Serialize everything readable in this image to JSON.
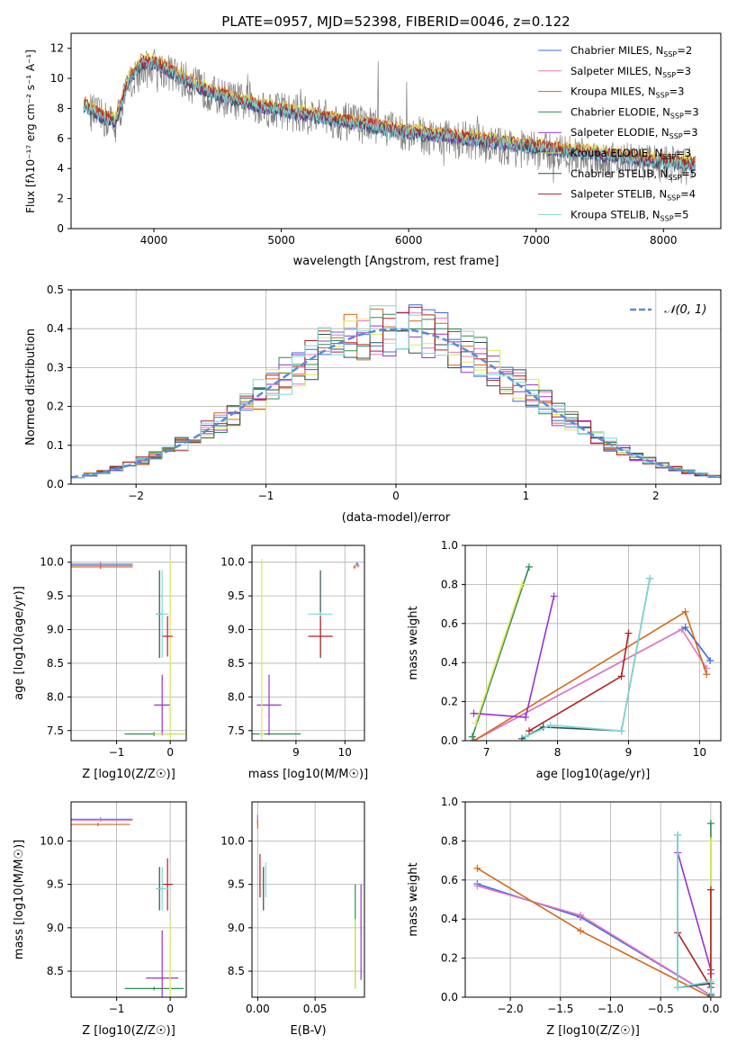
{
  "chart_data": [
    {
      "id": "spectrum",
      "type": "line",
      "title": "PLATE=0957, MJD=52398, FIBERID=0046, z=0.122",
      "xlabel": "wavelength [Angstrom, rest frame]",
      "ylabel": "Flux [fλ10⁻¹⁷ erg cm⁻² s⁻¹ A⁻¹]",
      "xlim": [
        3350,
        8450
      ],
      "ylim": [
        0,
        13
      ],
      "xticks": [
        4000,
        5000,
        6000,
        7000,
        8000
      ],
      "yticks": [
        0,
        2,
        4,
        6,
        8,
        10,
        12
      ],
      "legend": "top-right",
      "observed": {
        "x": [
          3500,
          3600,
          3700,
          3800,
          3900,
          4000,
          4100,
          4200,
          4300,
          4400,
          4500,
          4700,
          4900,
          5100,
          5300,
          5500,
          5700,
          5900,
          6100,
          6300,
          6500,
          6700,
          6900,
          7100,
          7300,
          7500,
          7700,
          7900,
          8100,
          8250
        ],
        "y": [
          7.8,
          7.3,
          7.0,
          9.5,
          10.5,
          10.8,
          10.5,
          10.0,
          9.6,
          9.2,
          8.8,
          8.4,
          8.0,
          7.7,
          7.4,
          7.1,
          6.8,
          6.5,
          6.2,
          6.0,
          5.8,
          5.5,
          5.3,
          5.1,
          4.9,
          4.7,
          4.5,
          4.4,
          4.3,
          4.1
        ]
      },
      "model": {
        "x": [
          3450,
          3500,
          3600,
          3700,
          3800,
          3900,
          4000,
          4100,
          4200,
          4300,
          4400,
          4500,
          4700,
          4900,
          5100,
          5300,
          5500,
          5700,
          5900,
          6100,
          6300,
          6500,
          6700,
          6900,
          7100,
          7300,
          7500,
          7700,
          7900,
          8100,
          8250
        ],
        "y": [
          8.2,
          7.9,
          7.4,
          7.1,
          9.8,
          11.0,
          11.0,
          10.6,
          10.1,
          9.6,
          9.2,
          8.9,
          8.4,
          8.0,
          7.7,
          7.4,
          7.1,
          6.8,
          6.5,
          6.3,
          6.1,
          5.9,
          5.7,
          5.5,
          5.3,
          5.1,
          4.9,
          4.7,
          4.5,
          4.4,
          4.2
        ]
      },
      "series": [
        {
          "name": "Chabrier MILES, N_SSP=2",
          "label_main": "Chabrier MILES, N",
          "label_sub": "SSP",
          "label_tail": "=2",
          "color": "#4169e1",
          "offset": 0.0
        },
        {
          "name": "Salpeter MILES, N_SSP=3",
          "label_main": "Salpeter MILES, N",
          "label_sub": "SSP",
          "label_tail": "=3",
          "color": "#e377c2",
          "offset": 0.1
        },
        {
          "name": "Kroupa MILES, N_SSP=3",
          "label_main": "Kroupa MILES, N",
          "label_sub": "SSP",
          "label_tail": "=3",
          "color": "#d2691e",
          "offset": 0.25
        },
        {
          "name": "Chabrier ELODIE, N_SSP=3",
          "label_main": "Chabrier ELODIE, N",
          "label_sub": "SSP",
          "label_tail": "=3",
          "color": "#2e8b57",
          "offset": 0.05
        },
        {
          "name": "Salpeter ELODIE, N_SSP=3",
          "label_main": "Salpeter ELODIE, N",
          "label_sub": "SSP",
          "label_tail": "=3",
          "color": "#9932cc",
          "offset": -0.05
        },
        {
          "name": "Kroupa ELODIE, N_SSP=3",
          "label_main": "Kroupa ELODIE, N",
          "label_sub": "SSP",
          "label_tail": "=3",
          "color": "#dde85a",
          "offset": 0.3
        },
        {
          "name": "Chabrier STELIB, N_SSP=5",
          "label_main": "Chabrier STELIB, N",
          "label_sub": "SSP",
          "label_tail": "=5",
          "color": "#2f4f4f",
          "offset": -0.1
        },
        {
          "name": "Salpeter STELIB, N_SSP=4",
          "label_main": "Salpeter STELIB, N",
          "label_sub": "SSP",
          "label_tail": "=4",
          "color": "#b22222",
          "offset": 0.15
        },
        {
          "name": "Kroupa STELIB, N_SSP=5",
          "label_main": "Kroupa STELIB, N",
          "label_sub": "SSP",
          "label_tail": "=5",
          "color": "#7fd8d8",
          "offset": 0.0
        }
      ]
    },
    {
      "id": "residuals",
      "type": "line",
      "xlabel": "(data-model)/error",
      "ylabel": "Normed distribution",
      "xlim": [
        -2.5,
        2.5
      ],
      "ylim": [
        0,
        0.5
      ],
      "xticks": [
        -2,
        -1,
        0,
        1,
        2
      ],
      "yticks": [
        0.0,
        0.1,
        0.2,
        0.3,
        0.4,
        0.5
      ],
      "grid": true,
      "bin_width": 0.1,
      "legend": "top-right",
      "reference_label": "𝒩(0, 1)",
      "reference_color": "#5b8bd6"
    },
    {
      "id": "age-vs-z",
      "type": "errorbar",
      "xlabel": "Z [log10(Z/Z☉)]",
      "ylabel": "age [log10(age/yr)]",
      "xlim": [
        -1.85,
        0.3
      ],
      "ylim": [
        7.35,
        10.25
      ],
      "xticks": [
        -1,
        0
      ],
      "yticks": [
        7.5,
        8.0,
        8.5,
        9.0,
        9.5,
        10.0
      ],
      "grid": true,
      "points": [
        {
          "x": -1.3,
          "y": 9.97,
          "xerr": 0.6,
          "yerr": 0.03,
          "series": 0
        },
        {
          "x": -1.3,
          "y": 9.95,
          "xerr": 0.6,
          "yerr": 0.03,
          "series": 1
        },
        {
          "x": -1.3,
          "y": 9.93,
          "xerr": 0.6,
          "yerr": 0.03,
          "series": 2
        },
        {
          "x": -0.3,
          "y": 7.45,
          "xerr": 0.55,
          "yerr": 0.03,
          "series": 3
        },
        {
          "x": -0.15,
          "y": 7.88,
          "xerr": 0.15,
          "yerr": 0.45,
          "series": 4
        },
        {
          "x": 0.0,
          "y": 7.45,
          "xerr": 0.3,
          "yerr": 2.6,
          "series": 5
        },
        {
          "x": -0.2,
          "y": 9.23,
          "xerr": 0.05,
          "yerr": 0.65,
          "series": 6
        },
        {
          "x": -0.05,
          "y": 8.9,
          "xerr": 0.1,
          "yerr": 0.3,
          "series": 7
        },
        {
          "x": -0.15,
          "y": 9.23,
          "xerr": 0.12,
          "yerr": 0.65,
          "series": 8
        }
      ]
    },
    {
      "id": "age-vs-mass",
      "type": "errorbar",
      "xlabel": "mass [log10(M/M☉)]",
      "ylabel": "",
      "xlim": [
        8.1,
        10.4
      ],
      "ylim": [
        7.35,
        10.25
      ],
      "xticks": [
        9,
        10
      ],
      "yticks": [
        7.5,
        8.0,
        8.5,
        9.0,
        9.5,
        10.0
      ],
      "grid": true,
      "points": [
        {
          "x": 10.25,
          "y": 9.97,
          "xerr": 0.03,
          "yerr": 0.03,
          "series": 0
        },
        {
          "x": 10.27,
          "y": 9.95,
          "xerr": 0.03,
          "yerr": 0.03,
          "series": 1
        },
        {
          "x": 10.2,
          "y": 9.93,
          "xerr": 0.03,
          "yerr": 0.03,
          "series": 2
        },
        {
          "x": 8.3,
          "y": 7.45,
          "xerr": 0.8,
          "yerr": 0.03,
          "series": 3
        },
        {
          "x": 8.45,
          "y": 7.88,
          "xerr": 0.25,
          "yerr": 0.45,
          "series": 4
        },
        {
          "x": 8.3,
          "y": 7.45,
          "xerr": 0.05,
          "yerr": 2.6,
          "series": 5
        },
        {
          "x": 9.5,
          "y": 9.23,
          "xerr": 0.03,
          "yerr": 0.65,
          "series": 6
        },
        {
          "x": 9.5,
          "y": 8.9,
          "xerr": 0.25,
          "yerr": 0.3,
          "series": 7
        },
        {
          "x": 9.5,
          "y": 9.23,
          "xerr": 0.25,
          "yerr": 0.03,
          "series": 8
        }
      ]
    },
    {
      "id": "mass-weight-vs-age",
      "type": "line",
      "xlabel": "age [log10(age/yr)]",
      "ylabel": "mass weight",
      "xlim": [
        6.7,
        10.3
      ],
      "ylim": [
        0,
        1
      ],
      "xticks": [
        7,
        8,
        9,
        10
      ],
      "yticks": [
        0.0,
        0.2,
        0.4,
        0.6,
        0.8,
        1.0
      ],
      "grid": true,
      "lines": [
        {
          "series": 0,
          "x": [
            6.82,
            9.8,
            10.15
          ],
          "y": [
            0.0,
            0.58,
            0.41
          ]
        },
        {
          "series": 1,
          "x": [
            6.82,
            9.75,
            10.1
          ],
          "y": [
            0.0,
            0.57,
            0.37
          ]
        },
        {
          "series": 2,
          "x": [
            6.82,
            9.8,
            10.1
          ],
          "y": [
            0.0,
            0.66,
            0.34
          ]
        },
        {
          "series": 3,
          "x": [
            6.8,
            7.6
          ],
          "y": [
            0.02,
            0.89
          ]
        },
        {
          "series": 4,
          "x": [
            6.82,
            7.55,
            7.95
          ],
          "y": [
            0.14,
            0.12,
            0.74
          ]
        },
        {
          "series": 5,
          "x": [
            6.85,
            7.5
          ],
          "y": [
            0.09,
            0.8
          ]
        },
        {
          "series": 6,
          "x": [
            7.5,
            7.8,
            8.9,
            9.3
          ],
          "y": [
            0.01,
            0.07,
            0.05,
            0.83
          ]
        },
        {
          "series": 7,
          "x": [
            7.6,
            8.9,
            9.0
          ],
          "y": [
            0.05,
            0.33,
            0.55
          ]
        },
        {
          "series": 8,
          "x": [
            7.55,
            7.9,
            8.9,
            9.3
          ],
          "y": [
            0.02,
            0.08,
            0.05,
            0.83
          ]
        }
      ]
    },
    {
      "id": "mass-vs-z",
      "type": "errorbar",
      "xlabel": "Z [log10(Z/Z☉)]",
      "ylabel": "mass [log10(M/M☉)]",
      "xlim": [
        -1.85,
        0.3
      ],
      "ylim": [
        8.2,
        10.45
      ],
      "xticks": [
        -1,
        0
      ],
      "yticks": [
        8.5,
        9.0,
        9.5,
        10.0
      ],
      "grid": true,
      "points": [
        {
          "x": -1.3,
          "y": 10.25,
          "xerr": 0.6,
          "yerr": 0.02,
          "series": 0
        },
        {
          "x": -1.3,
          "y": 10.24,
          "xerr": 0.6,
          "yerr": 0.02,
          "series": 1
        },
        {
          "x": -1.35,
          "y": 10.19,
          "xerr": 0.6,
          "yerr": 0.02,
          "series": 2
        },
        {
          "x": -0.3,
          "y": 8.3,
          "xerr": 0.55,
          "yerr": 0.02,
          "series": 3
        },
        {
          "x": -0.15,
          "y": 8.42,
          "xerr": 0.3,
          "yerr": 0.55,
          "series": 4
        },
        {
          "x": 0.0,
          "y": 8.3,
          "xerr": 0.02,
          "yerr": 0.8,
          "series": 5
        },
        {
          "x": -0.2,
          "y": 9.45,
          "xerr": 0.05,
          "yerr": 0.25,
          "series": 6
        },
        {
          "x": -0.05,
          "y": 9.5,
          "xerr": 0.1,
          "yerr": 0.3,
          "series": 7
        },
        {
          "x": -0.15,
          "y": 9.45,
          "xerr": 0.12,
          "yerr": 0.25,
          "series": 8
        }
      ]
    },
    {
      "id": "mass-vs-ebv",
      "type": "errorbar",
      "xlabel": "E(B-V)",
      "ylabel": "",
      "xlim": [
        -0.005,
        0.093
      ],
      "ylim": [
        8.2,
        10.45
      ],
      "xticks": [
        0.0,
        0.05
      ],
      "xtick_labels": [
        "0.00",
        "0.05"
      ],
      "yticks": [
        8.5,
        9.0,
        9.5,
        10.0
      ],
      "grid": true,
      "points": [
        {
          "x": 0.0,
          "y": 10.25,
          "xerr": 0,
          "yerr": 0.05,
          "series": 0
        },
        {
          "x": 0.0,
          "y": 10.24,
          "xerr": 0,
          "yerr": 0.05,
          "series": 1
        },
        {
          "x": 0.0,
          "y": 10.19,
          "xerr": 0,
          "yerr": 0.05,
          "series": 2
        },
        {
          "x": 0.085,
          "y": 8.9,
          "xerr": 0,
          "yerr": 0.6,
          "series": 3
        },
        {
          "x": 0.09,
          "y": 8.95,
          "xerr": 0,
          "yerr": 0.55,
          "series": 4
        },
        {
          "x": 0.085,
          "y": 8.7,
          "xerr": 0,
          "yerr": 0.4,
          "series": 5
        },
        {
          "x": 0.005,
          "y": 9.45,
          "xerr": 0,
          "yerr": 0.25,
          "series": 6
        },
        {
          "x": 0.002,
          "y": 9.6,
          "xerr": 0,
          "yerr": 0.25,
          "series": 7
        },
        {
          "x": 0.007,
          "y": 9.55,
          "xerr": 0,
          "yerr": 0.2,
          "series": 8
        }
      ]
    },
    {
      "id": "mass-weight-vs-z",
      "type": "line",
      "xlabel": "Z [log10(Z/Z☉)]",
      "ylabel": "mass weight",
      "xlim": [
        -2.45,
        0.1
      ],
      "ylim": [
        0,
        1
      ],
      "xticks": [
        -2.0,
        -1.5,
        -1.0,
        -0.5,
        0.0
      ],
      "xtick_labels": [
        "−2.0",
        "−1.5",
        "−1.0",
        "−0.5",
        "0.0"
      ],
      "yticks": [
        0.0,
        0.2,
        0.4,
        0.6,
        0.8,
        1.0
      ],
      "grid": true,
      "lines": [
        {
          "series": 0,
          "x": [
            -2.33,
            -1.3,
            0.0
          ],
          "y": [
            0.58,
            0.41,
            0.01
          ]
        },
        {
          "series": 1,
          "x": [
            -2.33,
            -1.3,
            0.0
          ],
          "y": [
            0.57,
            0.42,
            0.01
          ]
        },
        {
          "series": 2,
          "x": [
            -2.33,
            -1.3,
            0.0
          ],
          "y": [
            0.66,
            0.34,
            0.0
          ]
        },
        {
          "series": 3,
          "x": [
            0.0,
            0.0
          ],
          "y": [
            0.02,
            0.89
          ]
        },
        {
          "series": 4,
          "x": [
            -0.33,
            0.0,
            0.0
          ],
          "y": [
            0.74,
            0.14,
            0.12
          ]
        },
        {
          "series": 5,
          "x": [
            0.0,
            0.0
          ],
          "y": [
            0.09,
            0.8
          ]
        },
        {
          "series": 6,
          "x": [
            -0.33,
            -0.33,
            0.0,
            0.0
          ],
          "y": [
            0.83,
            0.05,
            0.07,
            0.01
          ]
        },
        {
          "series": 7,
          "x": [
            -0.33,
            0.0,
            0.0
          ],
          "y": [
            0.33,
            0.05,
            0.55
          ]
        },
        {
          "series": 8,
          "x": [
            -0.33,
            -0.33,
            0.0,
            0.0
          ],
          "y": [
            0.83,
            0.05,
            0.08,
            0.02
          ]
        }
      ]
    }
  ]
}
